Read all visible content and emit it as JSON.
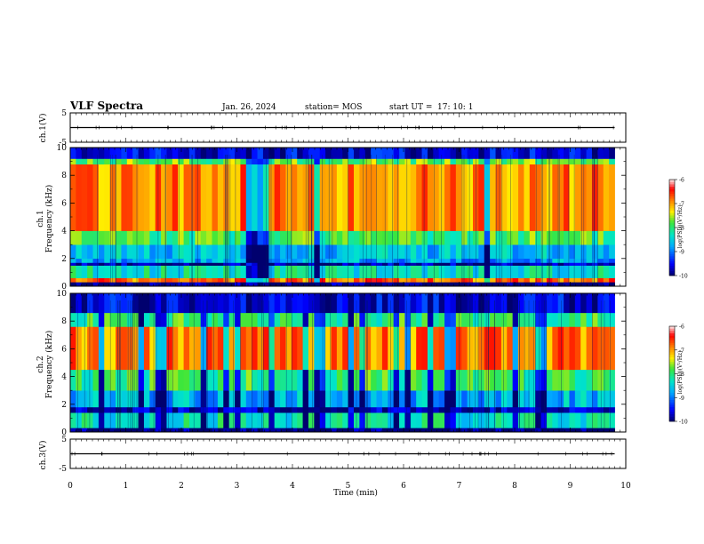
{
  "header": {
    "title": "VLF Spectra",
    "date": "Jan. 26, 2024",
    "station": "station= MOS",
    "start_label": "start  UT  =",
    "start_time": "17: 10: 1"
  },
  "chart_data": [
    {
      "type": "line",
      "panel": "ch1-waveform",
      "ylabel": "ch.1(V)",
      "ylim": [
        -5,
        5
      ],
      "yticks": [
        "5",
        "-5"
      ],
      "xlim": [
        0,
        10
      ],
      "series": [
        {
          "level": 0
        }
      ]
    },
    {
      "type": "heatmap",
      "panel": "ch1-spectrogram",
      "ylabel_line1": "ch.1",
      "ylabel_line2": "Frequency  (kHz)",
      "ylim": [
        0,
        10
      ],
      "yticks": [
        "0",
        "2",
        "4",
        "6",
        "8",
        "10"
      ],
      "xlim": [
        0,
        9.8
      ],
      "colorbar": {
        "label": "log(PSD)(V²/Hz)",
        "range": [
          -10,
          -6
        ],
        "ticks": [
          "-6",
          "-7",
          "-8",
          "-9",
          "-10"
        ]
      },
      "bands": [
        {
          "kHz": [
            0,
            0.3
          ],
          "level": -10
        },
        {
          "kHz": [
            0.3,
            0.6
          ],
          "level": -6.8
        },
        {
          "kHz": [
            0.6,
            1.5
          ],
          "level": -8.3
        },
        {
          "kHz": [
            1.5,
            1.7
          ],
          "level": -9.8
        },
        {
          "kHz": [
            1.7,
            2.0
          ],
          "level": -8.8
        },
        {
          "kHz": [
            2.0,
            3.0
          ],
          "level": -8.6
        },
        {
          "kHz": [
            3.0,
            4.0
          ],
          "level": -7.9
        },
        {
          "kHz": [
            4.0,
            8.8
          ],
          "level": -6.9
        },
        {
          "kHz": [
            8.8,
            9.2
          ],
          "level": -7.8
        },
        {
          "kHz": [
            9.2,
            10
          ],
          "level": -9.6
        }
      ]
    },
    {
      "type": "heatmap",
      "panel": "ch2-spectrogram",
      "ylabel_line1": "ch.2",
      "ylabel_line2": "Frequency  (kHz)",
      "ylim": [
        0,
        10
      ],
      "yticks": [
        "0",
        "2",
        "4",
        "6",
        "8",
        "10"
      ],
      "xlim": [
        0,
        9.8
      ],
      "colorbar": {
        "label": "log(PSD)(V²/Hz)",
        "range": [
          -10,
          -6
        ],
        "ticks": [
          "-6",
          "-7",
          "-8",
          "-9",
          "-10"
        ]
      },
      "bands": [
        {
          "kHz": [
            0,
            0.3
          ],
          "level": -10
        },
        {
          "kHz": [
            0.3,
            1.4
          ],
          "level": -8.3
        },
        {
          "kHz": [
            1.4,
            1.8
          ],
          "level": -9.8
        },
        {
          "kHz": [
            1.8,
            3.0
          ],
          "level": -8.7
        },
        {
          "kHz": [
            3.0,
            4.5
          ],
          "level": -8.0
        },
        {
          "kHz": [
            4.5,
            7.6
          ],
          "level": -6.9
        },
        {
          "kHz": [
            7.6,
            8.6
          ],
          "level": -8.0
        },
        {
          "kHz": [
            8.6,
            10
          ],
          "level": -9.6
        }
      ]
    },
    {
      "type": "line",
      "panel": "ch3-waveform",
      "ylabel": "ch.3(V)",
      "ylim": [
        -5,
        5
      ],
      "yticks": [
        "5",
        "-5"
      ],
      "xlim": [
        0,
        10
      ],
      "xlabel": "Time  (min)",
      "xticks": [
        "0",
        "1",
        "2",
        "3",
        "4",
        "5",
        "6",
        "7",
        "8",
        "9",
        "10"
      ],
      "series": [
        {
          "level": 0
        }
      ]
    }
  ]
}
